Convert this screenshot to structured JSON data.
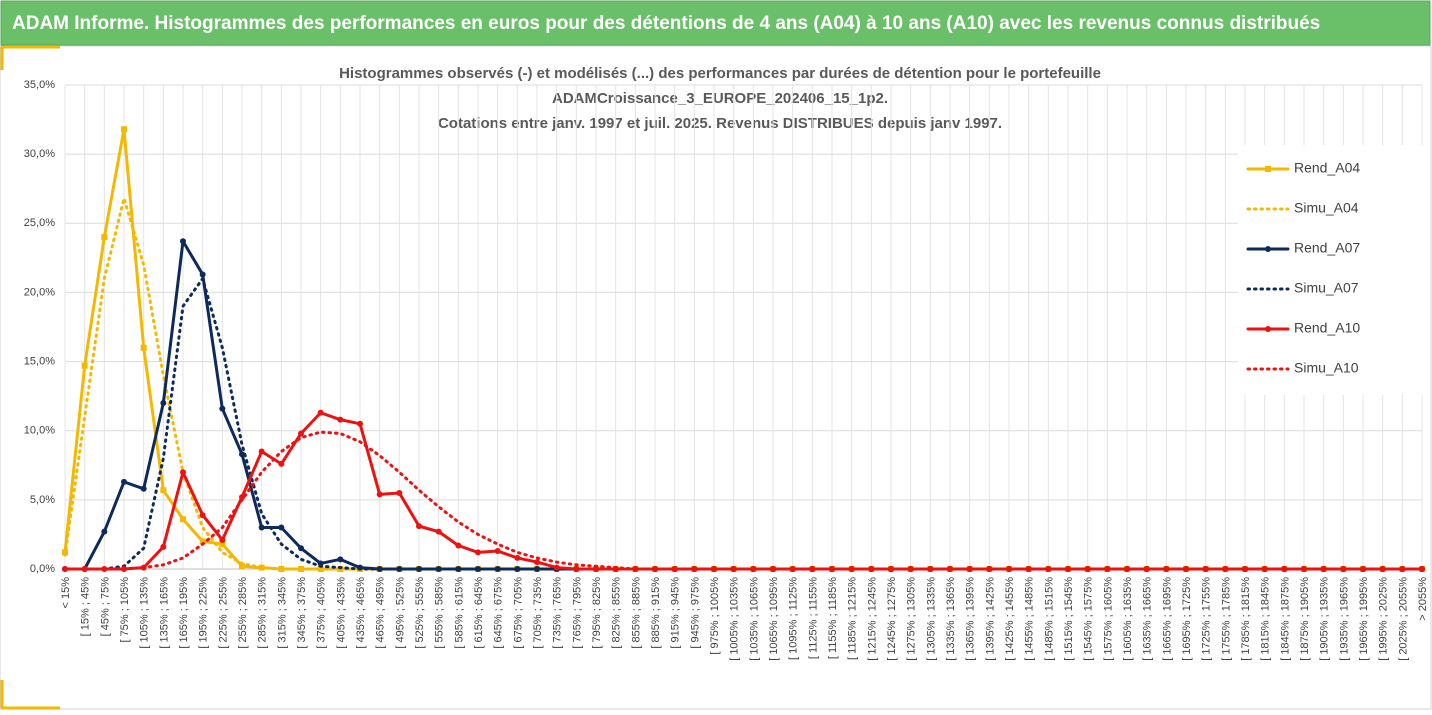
{
  "header": {
    "title": "ADAM Informe. Histogrammes des performances en euros pour des détentions de 4 ans (A04) à 10 ans (A10) avec les revenus connus distribués"
  },
  "chart_data": {
    "type": "line",
    "title": [
      "Histogrammes observés (-) et modélisés (...) des performances par durées de détention pour le portefeuille",
      "ADAMCroissance_3_EUROPE_202406_15_1p2.",
      "Cotations entre janv. 1997 et juil. 2025. Revenus DISTRIBUES depuis janv 1997."
    ],
    "categories": [
      "< 15%",
      "[ 15% ; 45%",
      "[ 45% ; 75%",
      "[ 75% ; 105%",
      "[ 105% ; 135%",
      "[ 135% ; 165%",
      "[ 165% ; 195%",
      "[ 195% ; 225%",
      "[ 225% ; 255%",
      "[ 255% ; 285%",
      "[ 285% ; 315%",
      "[ 315% ; 345%",
      "[ 345% ; 375%",
      "[ 375% ; 405%",
      "[ 405% ; 435%",
      "[ 435% ; 465%",
      "[ 465% ; 495%",
      "[ 495% ; 525%",
      "[ 525% ; 555%",
      "[ 555% ; 585%",
      "[ 585% ; 615%",
      "[ 615% ; 645%",
      "[ 645% ; 675%",
      "[ 675% ; 705%",
      "[ 705% ; 735%",
      "[ 735% ; 765%",
      "[ 765% ; 795%",
      "[ 795% ; 825%",
      "[ 825% ; 855%",
      "[ 855% ; 885%",
      "[ 885% ; 915%",
      "[ 915% ; 945%",
      "[ 945% ; 975%",
      "[ 975% ; 1005%",
      "[ 1005% ; 1035%",
      "[ 1035% ; 1065%",
      "[ 1065% ; 1095%",
      "[ 1095% ; 1125%",
      "[ 1125% ; 1155%",
      "[ 1155% ; 1185%",
      "[ 1185% ; 1215%",
      "[ 1215% ; 1245%",
      "[ 1245% ; 1275%",
      "[ 1275% ; 1305%",
      "[ 1305% ; 1335%",
      "[ 1335% ; 1365%",
      "[ 1365% ; 1395%",
      "[ 1395% ; 1425%",
      "[ 1425% ; 1455%",
      "[ 1455% ; 1485%",
      "[ 1485% ; 1515%",
      "[ 1515% ; 1545%",
      "[ 1545% ; 1575%",
      "[ 1575% ; 1605%",
      "[ 1605% ; 1635%",
      "[ 1635% ; 1665%",
      "[ 1665% ; 1695%",
      "[ 1695% ; 1725%",
      "[ 1725% ; 1755%",
      "[ 1755% ; 1785%",
      "[ 1785% ; 1815%",
      "[ 1815% ; 1845%",
      "[ 1845% ; 1875%",
      "[ 1875% ; 1905%",
      "[ 1905% ; 1935%",
      "[ 1935% ; 1965%",
      "[ 1965% ; 1995%",
      "[ 1995% ; 2025%",
      "[ 2025% ; 2055%",
      "> 2055%"
    ],
    "series": [
      {
        "name": "Rend_A04",
        "color": "#f5b800",
        "style": "solid",
        "marker": "square",
        "values": [
          1.2,
          14.7,
          24.0,
          31.8,
          16.0,
          5.7,
          3.6,
          2.0,
          1.8,
          0.2,
          0.1,
          0,
          0,
          0,
          0,
          0,
          0,
          0,
          0,
          0,
          0,
          0,
          0,
          0,
          0,
          0,
          0,
          0,
          0,
          0,
          0,
          0,
          0,
          0,
          0,
          0,
          0,
          0,
          0,
          0,
          0,
          0,
          0,
          0,
          0,
          0,
          0,
          0,
          0,
          0,
          0,
          0,
          0,
          0,
          0,
          0,
          0,
          0,
          0,
          0,
          0,
          0,
          0,
          0,
          0,
          0,
          0,
          0,
          0,
          0
        ]
      },
      {
        "name": "Simu_A04",
        "color": "#f5b800",
        "style": "dotted",
        "marker": "none",
        "values": [
          1.0,
          11,
          21,
          26.8,
          22,
          14,
          7,
          3,
          1.2,
          0.4,
          0.1,
          0,
          0,
          0,
          0,
          0,
          0,
          0,
          0,
          0,
          0,
          0,
          0,
          0,
          0,
          0,
          0,
          0,
          0,
          0,
          0,
          0,
          0,
          0,
          0,
          0,
          0,
          0,
          0,
          0,
          0,
          0,
          0,
          0,
          0,
          0,
          0,
          0,
          0,
          0,
          0,
          0,
          0,
          0,
          0,
          0,
          0,
          0,
          0,
          0,
          0,
          0,
          0,
          0,
          0,
          0,
          0,
          0,
          0,
          0
        ]
      },
      {
        "name": "Rend_A07",
        "color": "#0e2a5c",
        "style": "solid",
        "marker": "circle",
        "values": [
          0,
          0,
          2.7,
          6.3,
          5.8,
          12.0,
          23.7,
          21.3,
          11.6,
          8.3,
          3.0,
          3.0,
          1.5,
          0.4,
          0.7,
          0.1,
          0,
          0,
          0,
          0,
          0,
          0,
          0,
          0,
          0,
          0,
          0,
          0,
          0,
          0,
          0,
          0,
          0,
          0,
          0,
          0,
          0,
          0,
          0,
          0,
          0,
          0,
          0,
          0,
          0,
          0,
          0,
          0,
          0,
          0,
          0,
          0,
          0,
          0,
          0,
          0,
          0,
          0,
          0,
          0,
          0,
          0,
          0,
          0,
          0,
          0,
          0,
          0,
          0,
          0
        ]
      },
      {
        "name": "Simu_A07",
        "color": "#0e2a5c",
        "style": "dotted",
        "marker": "none",
        "values": [
          0,
          0,
          0,
          0.2,
          1.5,
          8,
          19,
          21,
          16,
          9,
          4,
          1.8,
          0.7,
          0.2,
          0.1,
          0,
          0,
          0,
          0,
          0,
          0,
          0,
          0,
          0,
          0,
          0,
          0,
          0,
          0,
          0,
          0,
          0,
          0,
          0,
          0,
          0,
          0,
          0,
          0,
          0,
          0,
          0,
          0,
          0,
          0,
          0,
          0,
          0,
          0,
          0,
          0,
          0,
          0,
          0,
          0,
          0,
          0,
          0,
          0,
          0,
          0,
          0,
          0,
          0,
          0,
          0,
          0,
          0,
          0,
          0
        ]
      },
      {
        "name": "Rend_A10",
        "color": "#ee1111",
        "style": "solid",
        "marker": "circle",
        "values": [
          0,
          0,
          0,
          0,
          0.1,
          1.6,
          7.0,
          3.9,
          2.1,
          5.2,
          8.5,
          7.6,
          9.8,
          11.3,
          10.8,
          10.5,
          5.4,
          5.5,
          3.1,
          2.7,
          1.7,
          1.2,
          1.3,
          0.8,
          0.5,
          0.1,
          0,
          0,
          0,
          0,
          0,
          0,
          0,
          0,
          0,
          0,
          0,
          0,
          0,
          0,
          0,
          0,
          0,
          0,
          0,
          0,
          0,
          0,
          0,
          0,
          0,
          0,
          0,
          0,
          0,
          0,
          0,
          0,
          0,
          0,
          0,
          0,
          0,
          0,
          0,
          0,
          0,
          0,
          0,
          0
        ]
      },
      {
        "name": "Simu_A10",
        "color": "#ee1111",
        "style": "dotted",
        "marker": "none",
        "values": [
          0,
          0,
          0,
          0,
          0.1,
          0.3,
          0.8,
          1.8,
          3,
          5,
          7,
          8.5,
          9.5,
          9.9,
          9.8,
          9.2,
          8.2,
          7.0,
          5.7,
          4.5,
          3.4,
          2.5,
          1.8,
          1.2,
          0.8,
          0.5,
          0.3,
          0.2,
          0.1,
          0,
          0,
          0,
          0,
          0,
          0,
          0,
          0,
          0,
          0,
          0,
          0,
          0,
          0,
          0,
          0,
          0,
          0,
          0,
          0,
          0,
          0,
          0,
          0,
          0,
          0,
          0,
          0,
          0,
          0,
          0,
          0,
          0,
          0,
          0,
          0,
          0,
          0,
          0,
          0,
          0
        ]
      }
    ],
    "ylim": [
      0,
      35
    ],
    "yticks": [
      {
        "value": 0,
        "label": "0,0%"
      },
      {
        "value": 5,
        "label": "5,0%"
      },
      {
        "value": 10,
        "label": "10,0%"
      },
      {
        "value": 15,
        "label": "15,0%"
      },
      {
        "value": 20,
        "label": "20,0%"
      },
      {
        "value": 25,
        "label": "25,0%"
      },
      {
        "value": 30,
        "label": "30,0%"
      },
      {
        "value": 35,
        "label": "35,0%"
      }
    ],
    "grid": true,
    "legend": "right"
  }
}
